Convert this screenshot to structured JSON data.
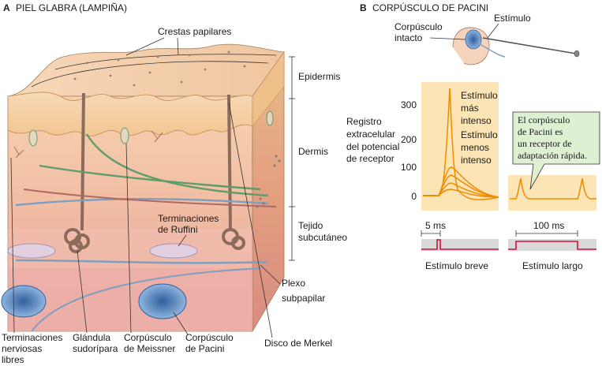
{
  "panel_a": {
    "letter": "A",
    "title": "PIEL GLABRA (LAMPIÑA)",
    "labels": {
      "crestas": "Crestas papilares",
      "epidermis": "Epidermis",
      "dermis": "Dermis",
      "tejido_1": "Tejido",
      "tejido_2": "subcutáneo",
      "ruffini_1": "Terminaciones",
      "ruffini_2": "de Ruffini",
      "plexo_1": "Plexo",
      "plexo_2": "subpapilar",
      "libres_1": "Terminaciones",
      "libres_2": "nerviosas",
      "libres_3": "libres",
      "glandula_1": "Glándula",
      "glandula_2": "sudorípara",
      "meissner_1": "Corpúsculo",
      "meissner_2": "de Meissner",
      "pacini_1": "Corpúsculo",
      "pacini_2": "de Pacini",
      "merkel": "Disco de Merkel"
    }
  },
  "panel_b": {
    "letter": "B",
    "title": "CORPÚSCULO DE PACINI",
    "corpusculo_1": "Corpúsculo",
    "corpusculo_2": "intacto",
    "estimulo": "Estímulo",
    "registro_1": "Registro",
    "registro_2": "extracelular",
    "registro_3": "del potencial",
    "registro_4": "de receptor",
    "y_ticks": [
      "300",
      "200",
      "100",
      "0"
    ],
    "mas_1": "Estímulo",
    "mas_2": "más",
    "mas_3": "intenso",
    "menos_1": "Estímulo",
    "menos_2": "menos",
    "menos_3": "intenso",
    "callout_1": "El corpúsculo",
    "callout_2": "de Pacini es",
    "callout_3": "un receptor de",
    "callout_4": "adaptación rápida.",
    "dur_breve": "5 ms",
    "dur_largo": "100 ms",
    "breve": "Estímulo breve",
    "largo": "Estímulo largo",
    "colors": {
      "trace": "#f08c00",
      "panel": "#fde4b4",
      "callout": "#dff0d2",
      "stim": "#d0103a"
    }
  }
}
